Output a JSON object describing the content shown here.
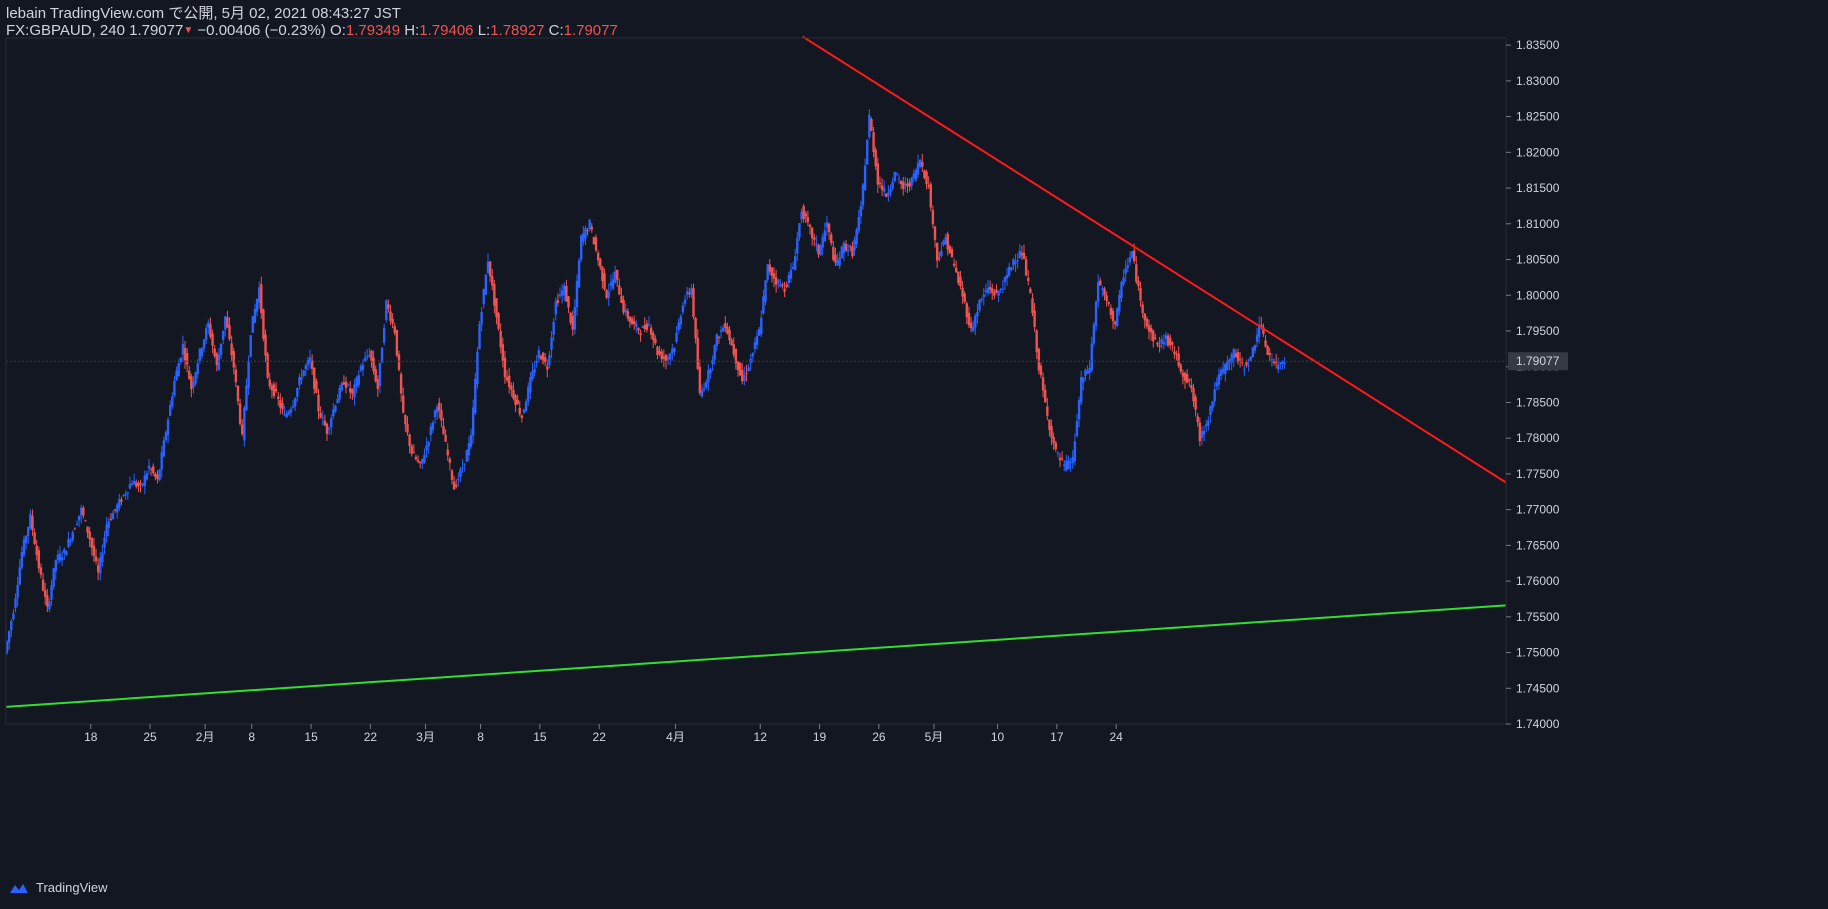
{
  "header": {
    "line1": "lebain TradingView.com で公開, 5月 02, 2021 08:43:27 JST",
    "symbol": "FX:GBPAUD, 240",
    "last": "1.79077",
    "change": "−0.00406 (−0.23%)",
    "o_label": "O:",
    "o_value": "1.79349",
    "h_label": "H:",
    "h_value": "1.79406",
    "l_label": "L:",
    "l_value": "1.78927",
    "c_label": "C:",
    "c_value": "1.79077"
  },
  "footer": {
    "brand": "TradingView"
  },
  "colors": {
    "background": "#131722",
    "up": "#2962ff",
    "down": "#ef5350",
    "resistance": "#ff1a1a",
    "support": "#33dd33",
    "axis_text": "#d1d4dc"
  },
  "chart_data": {
    "type": "candlestick",
    "symbol": "FX:GBPAUD",
    "timeframe": "240",
    "ylim": [
      1.74,
      1.836
    ],
    "y_ticks": [
      "1.83500",
      "1.83000",
      "1.82500",
      "1.82000",
      "1.81500",
      "1.81000",
      "1.80500",
      "1.80000",
      "1.79500",
      "1.79000",
      "1.78500",
      "1.78000",
      "1.77500",
      "1.77000",
      "1.76500",
      "1.76000",
      "1.75500",
      "1.75000",
      "1.74500",
      "1.74000"
    ],
    "x_ticks": [
      "18",
      "25",
      "2月",
      "8",
      "15",
      "22",
      "3月",
      "8",
      "15",
      "22",
      "4月",
      "12",
      "19",
      "26",
      "5月",
      "10",
      "17",
      "24"
    ],
    "last_price_label": "1.79077",
    "price_path": [
      {
        "d": 0,
        "p": 1.75
      },
      {
        "d": 1,
        "p": 1.756
      },
      {
        "d": 2,
        "p": 1.764
      },
      {
        "d": 3,
        "p": 1.769
      },
      {
        "d": 4,
        "p": 1.762
      },
      {
        "d": 5,
        "p": 1.756
      },
      {
        "d": 6,
        "p": 1.763
      },
      {
        "d": 7,
        "p": 1.764
      },
      {
        "d": 8,
        "p": 1.767
      },
      {
        "d": 9,
        "p": 1.77
      },
      {
        "d": 10,
        "p": 1.766
      },
      {
        "d": 11,
        "p": 1.761
      },
      {
        "d": 12,
        "p": 1.768
      },
      {
        "d": 13,
        "p": 1.77
      },
      {
        "d": 14,
        "p": 1.772
      },
      {
        "d": 15,
        "p": 1.774
      },
      {
        "d": 16,
        "p": 1.773
      },
      {
        "d": 17,
        "p": 1.776
      },
      {
        "d": 18,
        "p": 1.774
      },
      {
        "d": 19,
        "p": 1.781
      },
      {
        "d": 20,
        "p": 1.788
      },
      {
        "d": 21,
        "p": 1.793
      },
      {
        "d": 22,
        "p": 1.787
      },
      {
        "d": 23,
        "p": 1.792
      },
      {
        "d": 24,
        "p": 1.796
      },
      {
        "d": 25,
        "p": 1.79
      },
      {
        "d": 26,
        "p": 1.797
      },
      {
        "d": 27,
        "p": 1.79
      },
      {
        "d": 28,
        "p": 1.78
      },
      {
        "d": 29,
        "p": 1.795
      },
      {
        "d": 30,
        "p": 1.801
      },
      {
        "d": 31,
        "p": 1.788
      },
      {
        "d": 32,
        "p": 1.786
      },
      {
        "d": 33,
        "p": 1.783
      },
      {
        "d": 34,
        "p": 1.785
      },
      {
        "d": 35,
        "p": 1.789
      },
      {
        "d": 36,
        "p": 1.791
      },
      {
        "d": 37,
        "p": 1.784
      },
      {
        "d": 38,
        "p": 1.781
      },
      {
        "d": 39,
        "p": 1.785
      },
      {
        "d": 40,
        "p": 1.788
      },
      {
        "d": 41,
        "p": 1.786
      },
      {
        "d": 42,
        "p": 1.79
      },
      {
        "d": 43,
        "p": 1.792
      },
      {
        "d": 44,
        "p": 1.787
      },
      {
        "d": 45,
        "p": 1.799
      },
      {
        "d": 46,
        "p": 1.795
      },
      {
        "d": 47,
        "p": 1.783
      },
      {
        "d": 48,
        "p": 1.778
      },
      {
        "d": 49,
        "p": 1.776
      },
      {
        "d": 50,
        "p": 1.78
      },
      {
        "d": 51,
        "p": 1.785
      },
      {
        "d": 52,
        "p": 1.779
      },
      {
        "d": 53,
        "p": 1.773
      },
      {
        "d": 54,
        "p": 1.776
      },
      {
        "d": 55,
        "p": 1.78
      },
      {
        "d": 56,
        "p": 1.796
      },
      {
        "d": 57,
        "p": 1.805
      },
      {
        "d": 58,
        "p": 1.797
      },
      {
        "d": 59,
        "p": 1.789
      },
      {
        "d": 60,
        "p": 1.786
      },
      {
        "d": 61,
        "p": 1.783
      },
      {
        "d": 62,
        "p": 1.788
      },
      {
        "d": 63,
        "p": 1.792
      },
      {
        "d": 64,
        "p": 1.79
      },
      {
        "d": 65,
        "p": 1.799
      },
      {
        "d": 66,
        "p": 1.801
      },
      {
        "d": 67,
        "p": 1.795
      },
      {
        "d": 68,
        "p": 1.808
      },
      {
        "d": 69,
        "p": 1.81
      },
      {
        "d": 70,
        "p": 1.805
      },
      {
        "d": 71,
        "p": 1.8
      },
      {
        "d": 72,
        "p": 1.803
      },
      {
        "d": 73,
        "p": 1.798
      },
      {
        "d": 74,
        "p": 1.796
      },
      {
        "d": 75,
        "p": 1.795
      },
      {
        "d": 76,
        "p": 1.796
      },
      {
        "d": 77,
        "p": 1.792
      },
      {
        "d": 78,
        "p": 1.791
      },
      {
        "d": 79,
        "p": 1.793
      },
      {
        "d": 80,
        "p": 1.799
      },
      {
        "d": 81,
        "p": 1.801
      },
      {
        "d": 82,
        "p": 1.786
      },
      {
        "d": 83,
        "p": 1.789
      },
      {
        "d": 84,
        "p": 1.794
      },
      {
        "d": 85,
        "p": 1.796
      },
      {
        "d": 86,
        "p": 1.792
      },
      {
        "d": 87,
        "p": 1.788
      },
      {
        "d": 88,
        "p": 1.791
      },
      {
        "d": 89,
        "p": 1.795
      },
      {
        "d": 90,
        "p": 1.804
      },
      {
        "d": 91,
        "p": 1.802
      },
      {
        "d": 92,
        "p": 1.801
      },
      {
        "d": 93,
        "p": 1.804
      },
      {
        "d": 94,
        "p": 1.812
      },
      {
        "d": 95,
        "p": 1.809
      },
      {
        "d": 96,
        "p": 1.806
      },
      {
        "d": 97,
        "p": 1.81
      },
      {
        "d": 98,
        "p": 1.804
      },
      {
        "d": 99,
        "p": 1.807
      },
      {
        "d": 100,
        "p": 1.806
      },
      {
        "d": 101,
        "p": 1.812
      },
      {
        "d": 102,
        "p": 1.825
      },
      {
        "d": 103,
        "p": 1.816
      },
      {
        "d": 104,
        "p": 1.814
      },
      {
        "d": 105,
        "p": 1.817
      },
      {
        "d": 106,
        "p": 1.815
      },
      {
        "d": 107,
        "p": 1.816
      },
      {
        "d": 108,
        "p": 1.819
      },
      {
        "d": 109,
        "p": 1.815
      },
      {
        "d": 110,
        "p": 1.805
      },
      {
        "d": 111,
        "p": 1.808
      },
      {
        "d": 112,
        "p": 1.804
      },
      {
        "d": 113,
        "p": 1.8
      },
      {
        "d": 114,
        "p": 1.795
      },
      {
        "d": 115,
        "p": 1.799
      },
      {
        "d": 116,
        "p": 1.801
      },
      {
        "d": 117,
        "p": 1.8
      },
      {
        "d": 118,
        "p": 1.802
      },
      {
        "d": 119,
        "p": 1.805
      },
      {
        "d": 120,
        "p": 1.806
      },
      {
        "d": 121,
        "p": 1.8
      },
      {
        "d": 122,
        "p": 1.79
      },
      {
        "d": 123,
        "p": 1.783
      },
      {
        "d": 124,
        "p": 1.778
      },
      {
        "d": 125,
        "p": 1.776
      },
      {
        "d": 126,
        "p": 1.777
      },
      {
        "d": 127,
        "p": 1.788
      },
      {
        "d": 128,
        "p": 1.79
      },
      {
        "d": 129,
        "p": 1.802
      },
      {
        "d": 130,
        "p": 1.799
      },
      {
        "d": 131,
        "p": 1.796
      },
      {
        "d": 132,
        "p": 1.803
      },
      {
        "d": 133,
        "p": 1.806
      },
      {
        "d": 134,
        "p": 1.799
      },
      {
        "d": 135,
        "p": 1.795
      },
      {
        "d": 136,
        "p": 1.793
      },
      {
        "d": 137,
        "p": 1.794
      },
      {
        "d": 138,
        "p": 1.792
      },
      {
        "d": 139,
        "p": 1.789
      },
      {
        "d": 140,
        "p": 1.787
      },
      {
        "d": 141,
        "p": 1.78
      },
      {
        "d": 142,
        "p": 1.783
      },
      {
        "d": 143,
        "p": 1.788
      },
      {
        "d": 144,
        "p": 1.79
      },
      {
        "d": 145,
        "p": 1.792
      },
      {
        "d": 146,
        "p": 1.79
      },
      {
        "d": 147,
        "p": 1.791
      },
      {
        "d": 148,
        "p": 1.796
      },
      {
        "d": 149,
        "p": 1.792
      },
      {
        "d": 150,
        "p": 1.79
      },
      {
        "d": 151,
        "p": 1.791
      }
    ],
    "resistance_line": {
      "from": {
        "d": 94,
        "p": 1.8362
      },
      "to": {
        "d": 177,
        "p": 1.7738
      }
    },
    "support_line": {
      "from": {
        "d": 0,
        "p": 1.7424
      },
      "to": {
        "d": 177,
        "p": 1.7566
      }
    }
  }
}
